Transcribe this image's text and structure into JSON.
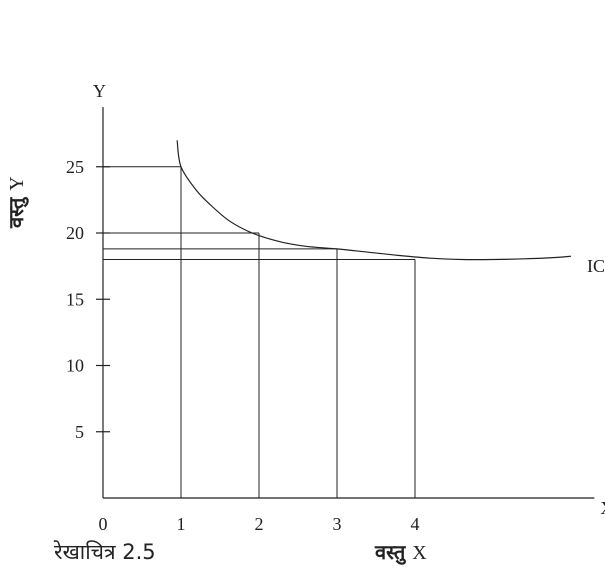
{
  "caption": "रेखाचित्र 2.5",
  "chart_data": {
    "type": "line",
    "x_axis_letter": "X",
    "y_axis_letter": "Y",
    "xlabel_text": "वस्तु",
    "xlabel_letter": "X",
    "ylabel_text": "वस्तु",
    "ylabel_letter": "Y",
    "x_ticks": [
      "0",
      "1",
      "2",
      "3",
      "4"
    ],
    "y_ticks": [
      "5",
      "10",
      "15",
      "20",
      "25"
    ],
    "xlim": [
      0,
      6.3
    ],
    "ylim": [
      0,
      29.5
    ],
    "series": [
      {
        "name": "IC",
        "x": [
          0.95,
          1.0,
          1.2,
          1.4,
          1.6,
          1.8,
          2.0,
          2.3,
          2.6,
          3.0,
          3.4,
          3.8,
          4.2,
          4.6,
          5.0,
          5.4,
          5.8,
          6.0
        ],
        "y": [
          27,
          25,
          23.2,
          22.0,
          21.0,
          20.3,
          19.8,
          19.3,
          19.0,
          18.8,
          18.55,
          18.3,
          18.1,
          18.0,
          18.0,
          18.05,
          18.15,
          18.25
        ]
      }
    ],
    "points": [
      {
        "x": 1,
        "y": 25
      },
      {
        "x": 2,
        "y": 20
      },
      {
        "x": 3,
        "y": 18.8
      },
      {
        "x": 4,
        "y": 18
      }
    ]
  }
}
